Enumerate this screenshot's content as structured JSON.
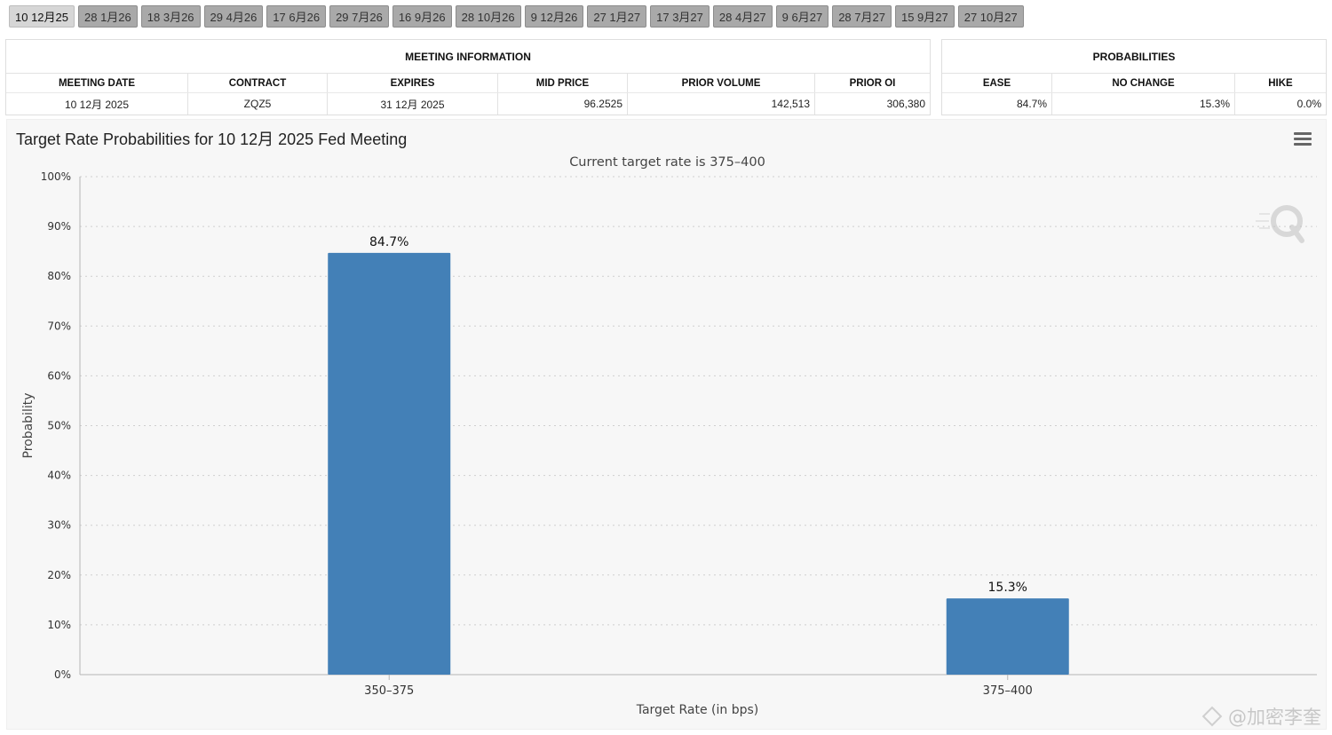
{
  "tabs": [
    {
      "label": "10 12月25",
      "active": true
    },
    {
      "label": "28 1月26"
    },
    {
      "label": "18 3月26"
    },
    {
      "label": "29 4月26"
    },
    {
      "label": "17 6月26"
    },
    {
      "label": "29 7月26"
    },
    {
      "label": "16 9月26"
    },
    {
      "label": "28 10月26"
    },
    {
      "label": "9 12月26"
    },
    {
      "label": "27 1月27"
    },
    {
      "label": "17 3月27"
    },
    {
      "label": "28 4月27"
    },
    {
      "label": "9 6月27"
    },
    {
      "label": "28 7月27"
    },
    {
      "label": "15 9月27"
    },
    {
      "label": "27 10月27"
    }
  ],
  "meeting_info": {
    "title": "MEETING INFORMATION",
    "headers": {
      "meeting_date": "MEETING DATE",
      "contract": "CONTRACT",
      "expires": "EXPIRES",
      "mid_price": "MID PRICE",
      "prior_volume": "PRIOR VOLUME",
      "prior_oi": "PRIOR OI"
    },
    "values": {
      "meeting_date": "10 12月 2025",
      "contract": "ZQZ5",
      "expires": "31 12月 2025",
      "mid_price": "96.2525",
      "prior_volume": "142,513",
      "prior_oi": "306,380"
    }
  },
  "probabilities": {
    "title": "PROBABILITIES",
    "headers": {
      "ease": "EASE",
      "no_change": "NO CHANGE",
      "hike": "HIKE"
    },
    "values": {
      "ease": "84.7%",
      "no_change": "15.3%",
      "hike": "0.0%"
    }
  },
  "chart_title": "Target Rate Probabilities for 10 12月 2025 Fed Meeting",
  "watermark_text": "@加密李奎",
  "colors": {
    "bar": "#4380b7",
    "grid": "#cfcfcf",
    "axis": "#b5b5b5"
  },
  "icons": {
    "menu": "hamburger-menu-icon",
    "logo": "q-logo-icon"
  },
  "chart_data": {
    "type": "bar",
    "subtitle": "Current target rate is 375–400",
    "categories": [
      "350–375",
      "375–400"
    ],
    "values": [
      84.7,
      15.3
    ],
    "data_labels": [
      "84.7%",
      "15.3%"
    ],
    "xlabel": "Target Rate (in bps)",
    "ylabel": "Probability",
    "ylim": [
      0,
      100
    ],
    "y_ticks": [
      0,
      10,
      20,
      30,
      40,
      50,
      60,
      70,
      80,
      90,
      100
    ],
    "y_tick_suffix": "%",
    "grid": true,
    "legend": "none"
  }
}
